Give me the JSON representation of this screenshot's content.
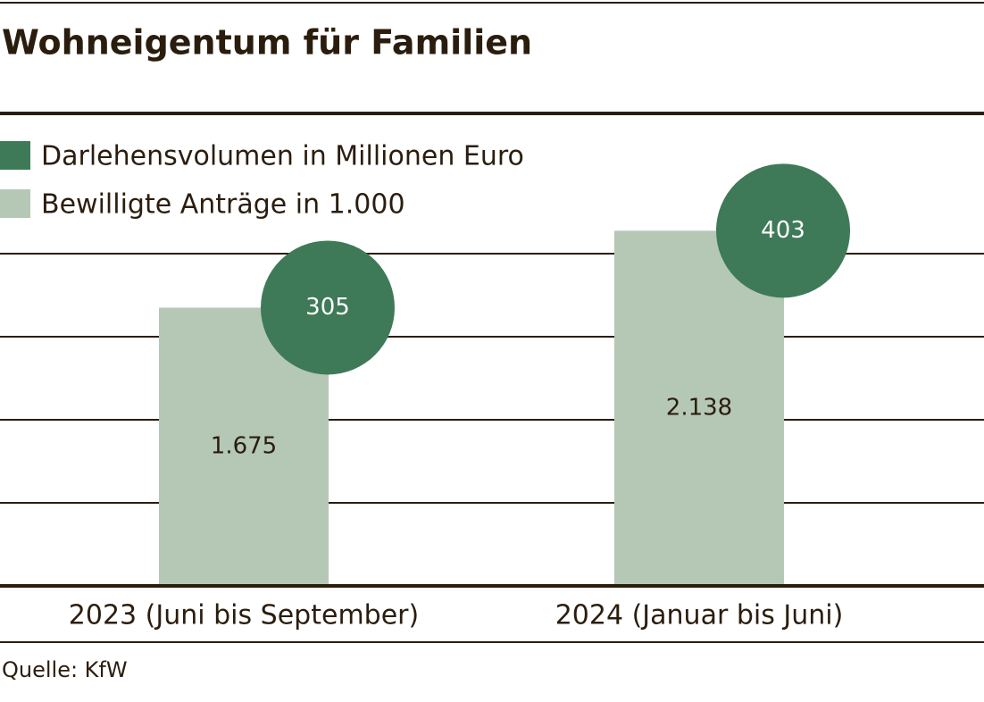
{
  "chart_data": {
    "type": "bar",
    "title": "Wohneigentum für Familien",
    "categories": [
      "2023 (Juni bis September)",
      "2024 (Januar bis Juni)"
    ],
    "series": [
      {
        "name": "Darlehensvolumen in Millionen Euro",
        "color": "#3e7a57",
        "values": [
          305,
          403
        ]
      },
      {
        "name": "Bewilligte Anträge in 1.000",
        "color": "#b5c8b5",
        "values": [
          1675,
          2138
        ],
        "value_labels": [
          "1.675",
          "2.138"
        ]
      }
    ],
    "ylim": [
      0,
      2000
    ],
    "yticks": [
      0,
      500,
      1000,
      1500,
      2000
    ],
    "grid": true,
    "source": "Quelle: KfW"
  }
}
